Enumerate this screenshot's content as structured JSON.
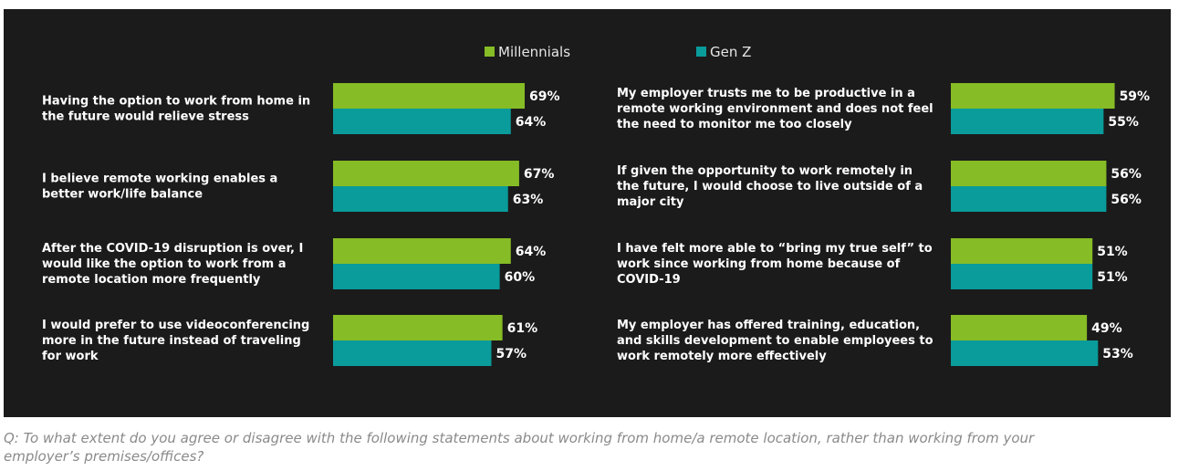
{
  "chart_data": {
    "type": "bar",
    "orientation": "horizontal",
    "legend_placement": "top",
    "grid": false,
    "colors": {
      "background": "#1b1b1b",
      "Millennials": "#86bc25",
      "Gen Z": "#0a9b9b",
      "text": "#ffffff"
    },
    "series_names": [
      "Millennials",
      "Gen Z"
    ],
    "value_suffix": "%",
    "panels": [
      {
        "statements": [
          {
            "lines": [
              "Having the option to work from home in",
              "the future would relieve stress"
            ],
            "values": [
              69,
              64
            ]
          },
          {
            "lines": [
              "I believe remote working enables a",
              "better work/life balance"
            ],
            "values": [
              67,
              63
            ]
          },
          {
            "lines": [
              "After the COVID-19 disruption is over, I",
              "would like the option to work from a",
              "remote location more frequently"
            ],
            "values": [
              64,
              60
            ]
          },
          {
            "lines": [
              "I would prefer to use videoconferencing",
              "more in the future instead of traveling",
              "for work"
            ],
            "values": [
              61,
              57
            ]
          }
        ]
      },
      {
        "statements": [
          {
            "lines": [
              "My employer trusts me to be productive in a",
              "remote working environment and does not feel",
              "the need to monitor me too closely"
            ],
            "values": [
              59,
              55
            ]
          },
          {
            "lines": [
              "If given the opportunity to work remotely in",
              "the future, I would choose to live outside of a",
              "major city"
            ],
            "values": [
              56,
              56
            ]
          },
          {
            "lines": [
              "I have felt more able to “bring my true self” to",
              "work since working from home because of",
              "COVID-19"
            ],
            "values": [
              51,
              51
            ]
          },
          {
            "lines": [
              "My employer has offered training, education,",
              "and skills development to enable employees to",
              "work remotely more effectively"
            ],
            "values": [
              49,
              53
            ]
          }
        ]
      }
    ]
  },
  "caption": {
    "line1": "Q: To what extent do you agree or disagree with the following statements about working from home/a remote location, rather than working from your",
    "line2": "employer’s premises/offices?"
  }
}
